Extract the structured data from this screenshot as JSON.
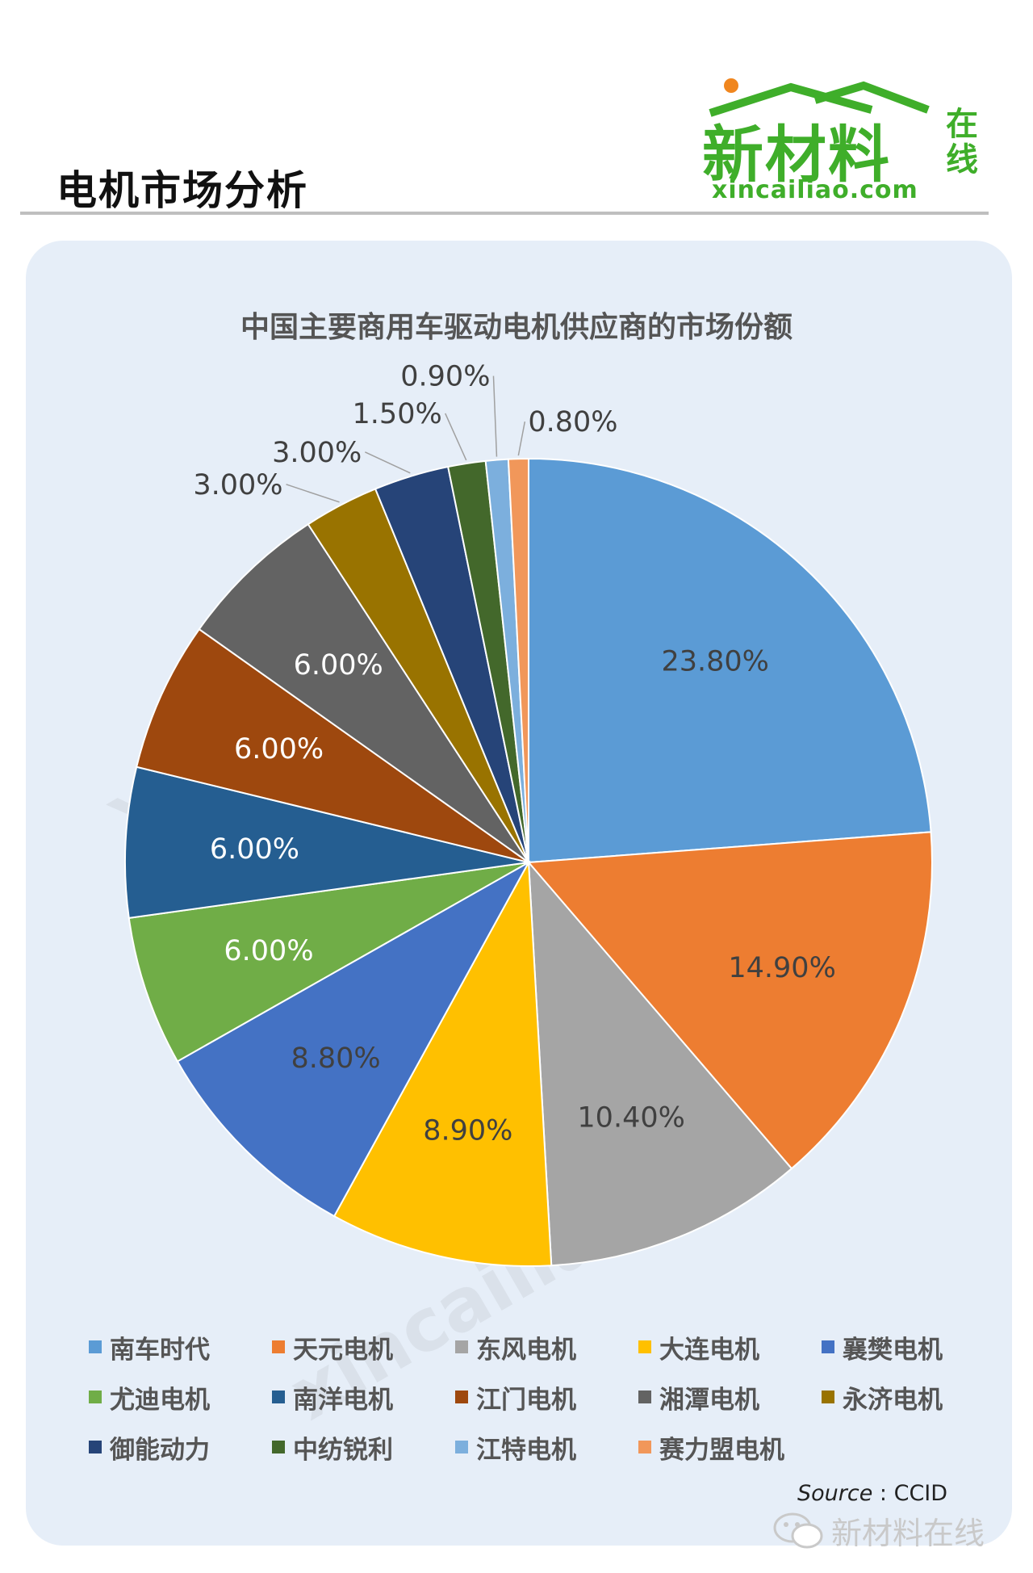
{
  "header": {
    "page_title": "电机市场分析",
    "logo_text": "新材料",
    "logo_side": "在线",
    "logo_url": "xincailiao.com"
  },
  "watermark": "xincailiao.com",
  "chart_data": {
    "type": "pie",
    "title": "中国主要商用车驱动电机供应商的市场份额",
    "categories": [
      "南车时代",
      "天元电机",
      "东风电机",
      "大连电机",
      "襄樊电机",
      "尤迪电机",
      "南洋电机",
      "江门电机",
      "湘潭电机",
      "永济电机",
      "御能动力",
      "中纺锐利",
      "江特电机",
      "赛力盟电机"
    ],
    "values": [
      23.8,
      14.9,
      10.4,
      8.9,
      8.8,
      6.0,
      6.0,
      6.0,
      6.0,
      3.0,
      3.0,
      1.5,
      0.9,
      0.8
    ],
    "labels": [
      "23.80%",
      "14.90%",
      "10.40%",
      "8.90%",
      "8.80%",
      "6.00%",
      "6.00%",
      "6.00%",
      "6.00%",
      "3.00%",
      "3.00%",
      "1.50%",
      "0.90%",
      "0.80%"
    ],
    "colors": [
      "#5b9bd5",
      "#ed7d31",
      "#a5a5a5",
      "#ffc000",
      "#4472c4",
      "#70ad47",
      "#255e91",
      "#9e480e",
      "#636363",
      "#997300",
      "#264478",
      "#43682b",
      "#7cafdd",
      "#f1975a"
    ],
    "legend_position": "bottom"
  },
  "footer": {
    "source_label": "Source",
    "source_value": "CCID",
    "wechat_name": "新材料在线"
  }
}
